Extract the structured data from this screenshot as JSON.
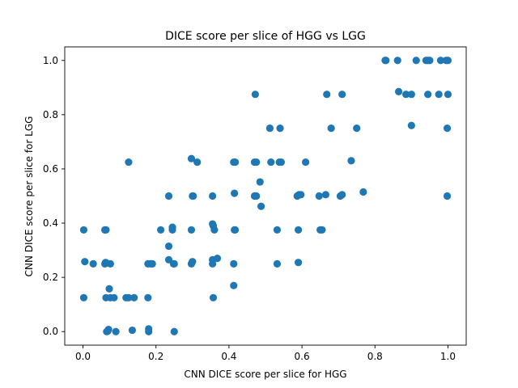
{
  "chart_data": {
    "type": "scatter",
    "title": "DICE score per slice of HGG vs LGG",
    "xlabel": "CNN DICE score per slice for HGG",
    "ylabel": "CNN DICE score per slice for LGG",
    "xlim": [
      -0.05,
      1.05
    ],
    "ylim": [
      -0.05,
      1.05
    ],
    "x_ticks": [
      "0.0",
      "0.2",
      "0.4",
      "0.6",
      "0.8",
      "1.0"
    ],
    "y_ticks": [
      "0.0",
      "0.2",
      "0.4",
      "0.6",
      "0.8",
      "1.0"
    ],
    "grid": false,
    "marker_color": "#1f77b4",
    "points": [
      [
        0.002,
        0.375
      ],
      [
        0.002,
        0.125
      ],
      [
        0.005,
        0.258
      ],
      [
        0.028,
        0.25
      ],
      [
        0.06,
        0.375
      ],
      [
        0.063,
        0.375
      ],
      [
        0.06,
        0.25
      ],
      [
        0.075,
        0.25
      ],
      [
        0.062,
        0.255
      ],
      [
        0.063,
        0.125
      ],
      [
        0.075,
        0.125
      ],
      [
        0.085,
        0.125
      ],
      [
        0.072,
        0.158
      ],
      [
        0.065,
        0.0
      ],
      [
        0.07,
        0.008
      ],
      [
        0.09,
        0.0
      ],
      [
        0.068,
        0.002
      ],
      [
        0.118,
        0.125
      ],
      [
        0.125,
        0.125
      ],
      [
        0.14,
        0.125
      ],
      [
        0.135,
        0.005
      ],
      [
        0.125,
        0.625
      ],
      [
        0.178,
        0.25
      ],
      [
        0.185,
        0.25
      ],
      [
        0.19,
        0.25
      ],
      [
        0.178,
        0.125
      ],
      [
        0.18,
        0.0
      ],
      [
        0.18,
        0.01
      ],
      [
        0.213,
        0.375
      ],
      [
        0.235,
        0.5
      ],
      [
        0.235,
        0.315
      ],
      [
        0.235,
        0.265
      ],
      [
        0.245,
        0.375
      ],
      [
        0.245,
        0.385
      ],
      [
        0.248,
        0.25
      ],
      [
        0.25,
        0.25
      ],
      [
        0.25,
        0.0
      ],
      [
        0.297,
        0.638
      ],
      [
        0.297,
        0.375
      ],
      [
        0.3,
        0.5
      ],
      [
        0.302,
        0.5
      ],
      [
        0.297,
        0.25
      ],
      [
        0.3,
        0.258
      ],
      [
        0.313,
        0.625
      ],
      [
        0.355,
        0.5
      ],
      [
        0.355,
        0.397
      ],
      [
        0.357,
        0.39
      ],
      [
        0.36,
        0.375
      ],
      [
        0.355,
        0.265
      ],
      [
        0.355,
        0.25
      ],
      [
        0.368,
        0.27
      ],
      [
        0.357,
        0.125
      ],
      [
        0.413,
        0.625
      ],
      [
        0.417,
        0.625
      ],
      [
        0.415,
        0.51
      ],
      [
        0.415,
        0.375
      ],
      [
        0.417,
        0.375
      ],
      [
        0.413,
        0.25
      ],
      [
        0.413,
        0.17
      ],
      [
        0.472,
        0.875
      ],
      [
        0.47,
        0.625
      ],
      [
        0.475,
        0.625
      ],
      [
        0.47,
        0.5
      ],
      [
        0.475,
        0.5
      ],
      [
        0.485,
        0.552
      ],
      [
        0.488,
        0.462
      ],
      [
        0.512,
        0.75
      ],
      [
        0.515,
        0.625
      ],
      [
        0.54,
        0.75
      ],
      [
        0.538,
        0.625
      ],
      [
        0.543,
        0.625
      ],
      [
        0.532,
        0.375
      ],
      [
        0.532,
        0.25
      ],
      [
        0.587,
        0.5
      ],
      [
        0.592,
        0.505
      ],
      [
        0.597,
        0.505
      ],
      [
        0.59,
        0.375
      ],
      [
        0.59,
        0.255
      ],
      [
        0.61,
        0.625
      ],
      [
        0.647,
        0.5
      ],
      [
        0.665,
        0.505
      ],
      [
        0.65,
        0.375
      ],
      [
        0.655,
        0.375
      ],
      [
        0.668,
        0.875
      ],
      [
        0.68,
        0.75
      ],
      [
        0.705,
        0.5
      ],
      [
        0.71,
        0.505
      ],
      [
        0.71,
        0.875
      ],
      [
        0.735,
        0.63
      ],
      [
        0.75,
        0.75
      ],
      [
        0.768,
        0.515
      ],
      [
        0.828,
        1.0
      ],
      [
        0.83,
        1.0
      ],
      [
        0.862,
        1.0
      ],
      [
        0.865,
        0.885
      ],
      [
        0.885,
        0.875
      ],
      [
        0.9,
        0.875
      ],
      [
        0.9,
        0.76
      ],
      [
        0.913,
        1.0
      ],
      [
        0.94,
        1.0
      ],
      [
        0.945,
        1.0
      ],
      [
        0.95,
        1.0
      ],
      [
        0.945,
        0.875
      ],
      [
        0.975,
        0.875
      ],
      [
        0.98,
        1.0
      ],
      [
        0.995,
        1.0
      ],
      [
        1.0,
        1.0
      ],
      [
        1.0,
        0.875
      ],
      [
        0.998,
        0.75
      ],
      [
        0.998,
        0.5
      ]
    ]
  }
}
